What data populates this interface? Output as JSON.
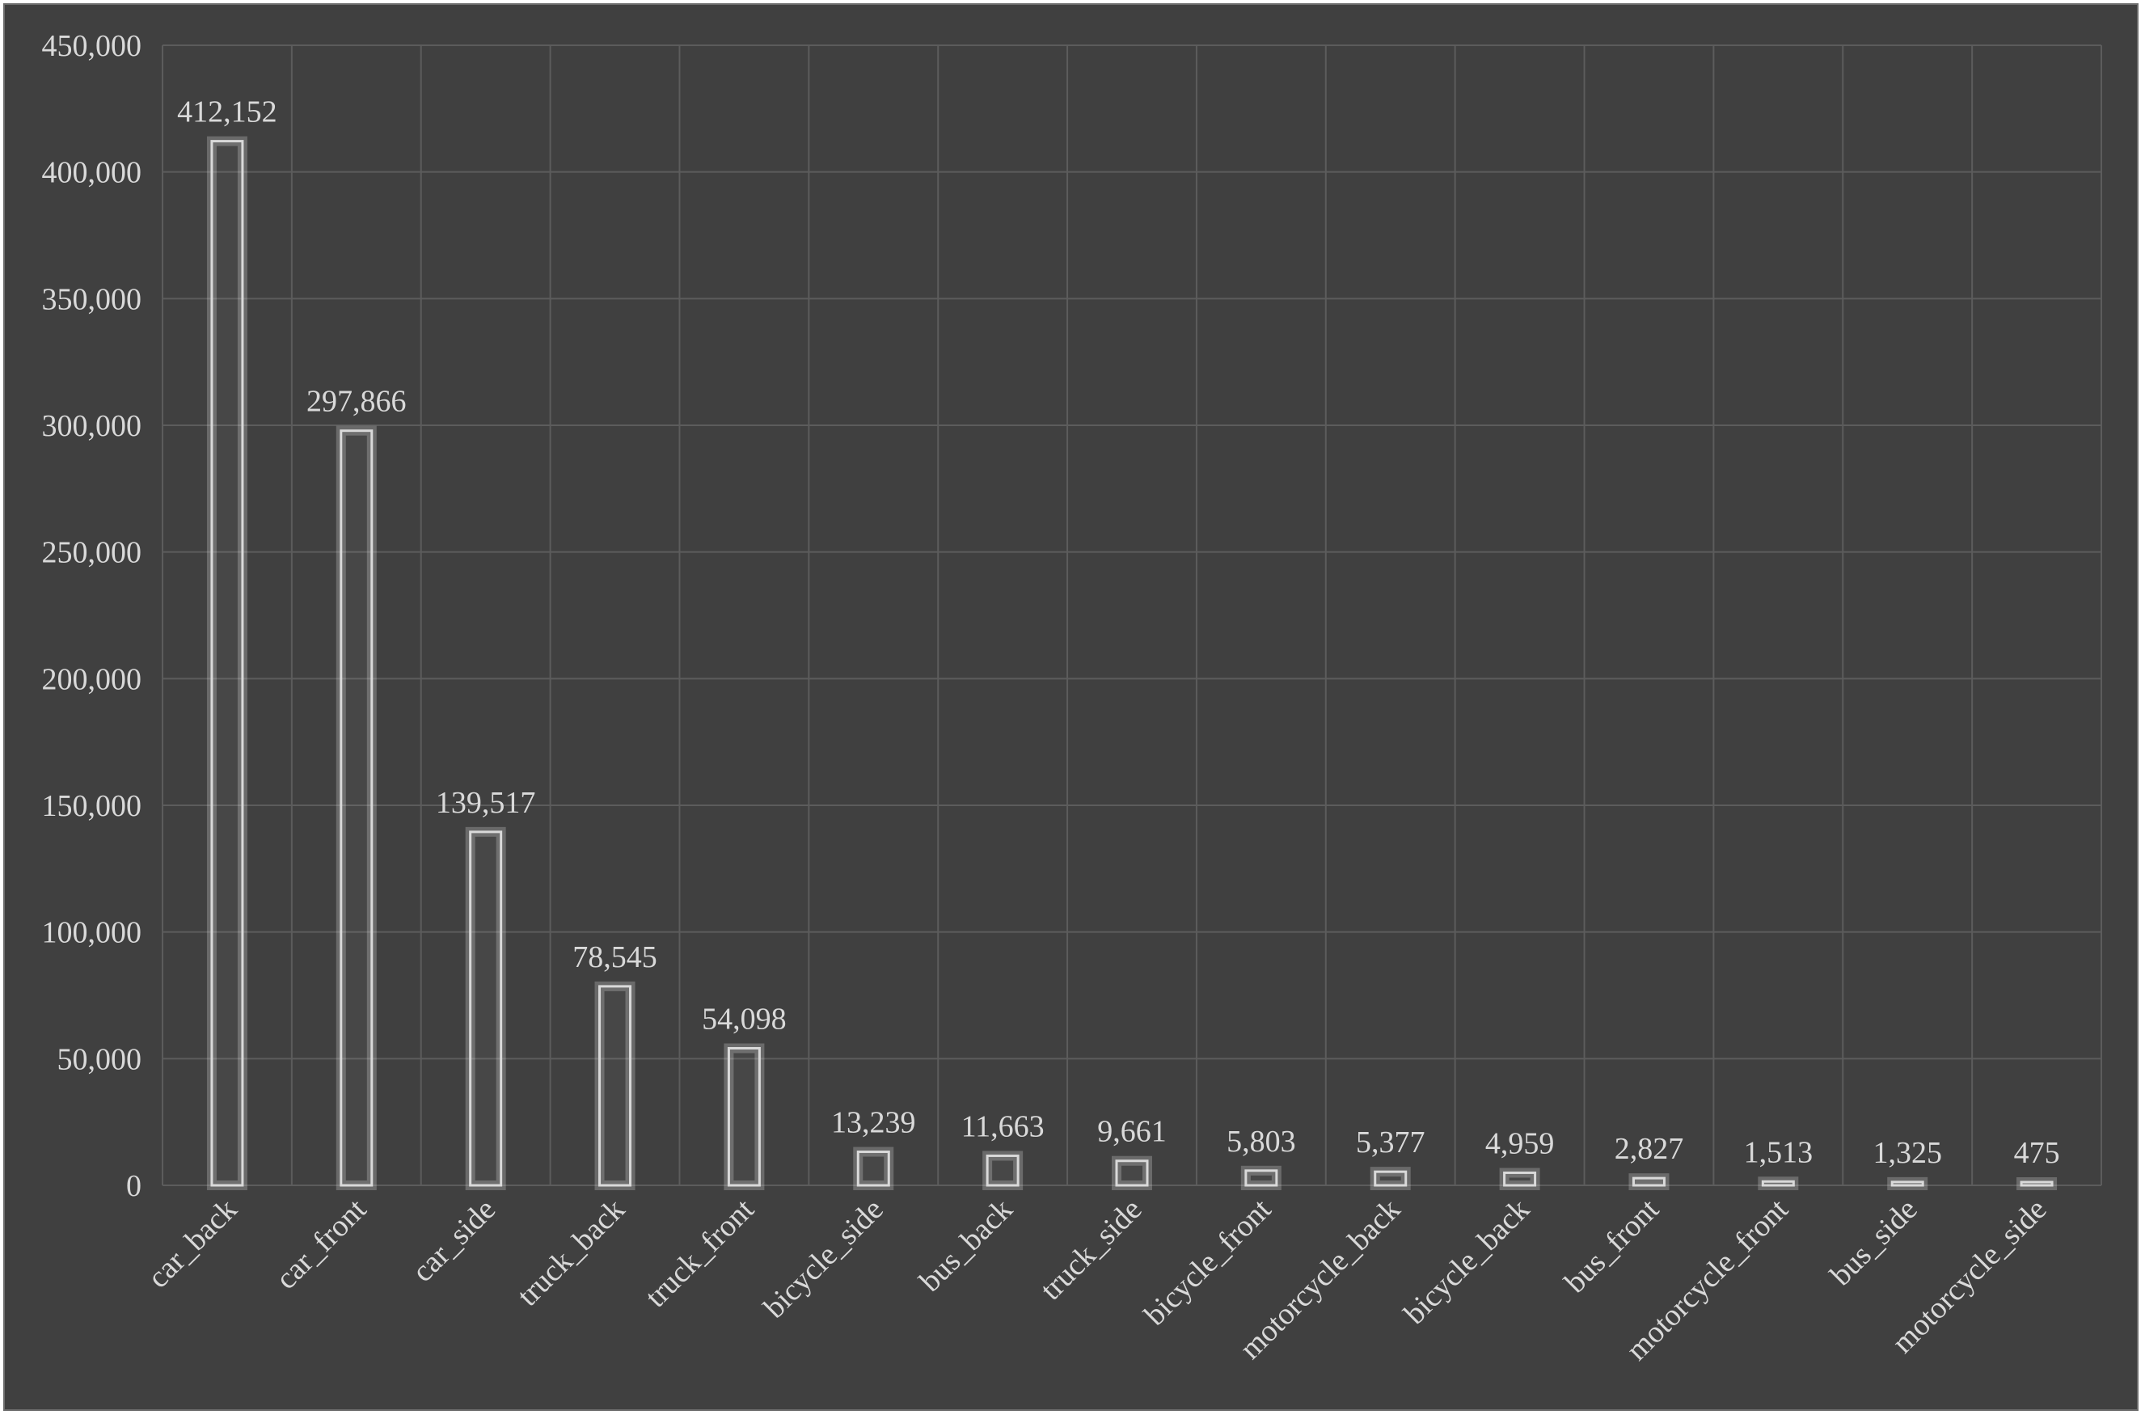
{
  "chart_data": {
    "type": "bar",
    "title": "",
    "xlabel": "",
    "ylabel": "",
    "ylim": [
      0,
      450000
    ],
    "yticks": [
      0,
      50000,
      100000,
      150000,
      200000,
      250000,
      300000,
      350000,
      400000,
      450000
    ],
    "grid": true,
    "legend": "none",
    "categories": [
      "car_back",
      "car_front",
      "car_side",
      "truck_back",
      "truck_front",
      "bicycle_side",
      "bus_back",
      "truck_side",
      "bicycle_front",
      "motorcycle_back",
      "bicycle_back",
      "bus_front",
      "motorcycle_front",
      "bus_side",
      "motorcycle_side"
    ],
    "values": [
      412152,
      297866,
      139517,
      78545,
      54098,
      13239,
      11663,
      9661,
      5803,
      5377,
      4959,
      2827,
      1513,
      1325,
      475
    ],
    "data_labels": [
      "412,152",
      "297,866",
      "139,517",
      "78,545",
      "54,098",
      "13,239",
      "11,663",
      "9,661",
      "5,803",
      "5,377",
      "4,959",
      "2,827",
      "1,513",
      "1,325",
      "475"
    ],
    "tick_labels": [
      "0",
      "50,000",
      "100,000",
      "150,000",
      "200,000",
      "250,000",
      "300,000",
      "350,000",
      "400,000",
      "450,000"
    ],
    "colors": {
      "background": "#404040",
      "bar_outline": "#d9d9d9",
      "grid": "#5c5c5c",
      "text": "#d9d9d9"
    }
  }
}
